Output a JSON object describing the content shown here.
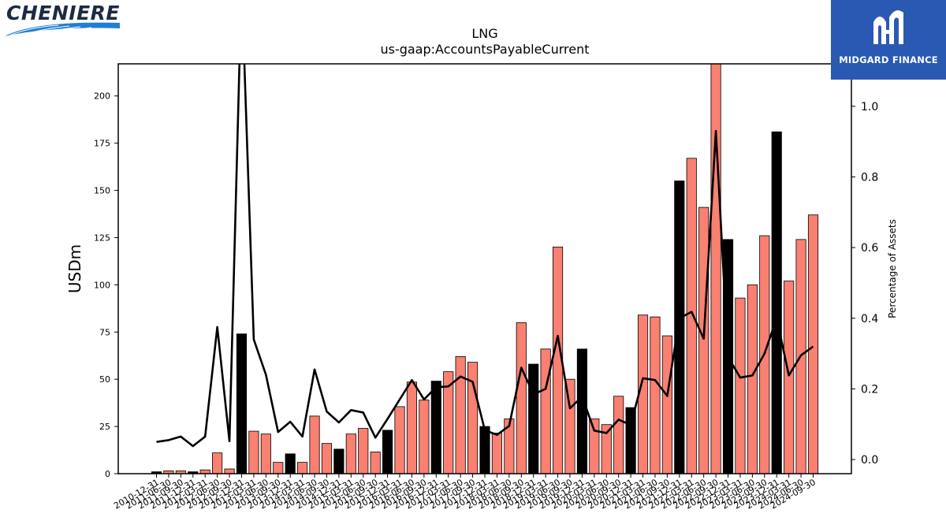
{
  "chart_data": {
    "type": "bar",
    "title": "LNG",
    "subtitle": "us-gaap:AccountsPayableCurrent",
    "ylabel": "USDm",
    "y2label": "Percentage of Assets",
    "ylim": [
      0,
      217
    ],
    "y2lim": [
      -0.04,
      1.12
    ],
    "yticks": [
      0,
      25,
      50,
      75,
      100,
      125,
      150,
      175,
      200
    ],
    "y2ticks": [
      0.0,
      0.2,
      0.4,
      0.6,
      0.8,
      1.0
    ],
    "y2tick_labels": [
      "0.0",
      "0.2",
      "0.4",
      "0.6",
      "0.8",
      "1.0"
    ],
    "categories": [
      "2010-12-31",
      "2011-06-30",
      "2011-09-30",
      "2011-12-31",
      "2012-03-31",
      "2012-06-30",
      "2012-09-30",
      "2012-12-31",
      "2013-03-31",
      "2013-06-30",
      "2013-09-30",
      "2013-12-31",
      "2014-03-31",
      "2014-06-30",
      "2014-09-30",
      "2014-12-31",
      "2015-03-31",
      "2015-06-30",
      "2015-09-30",
      "2015-12-31",
      "2016-03-31",
      "2016-06-30",
      "2016-09-30",
      "2016-12-31",
      "2017-03-31",
      "2017-06-30",
      "2017-09-30",
      "2017-12-31",
      "2018-03-31",
      "2018-06-30",
      "2018-09-30",
      "2018-12-31",
      "2019-03-31",
      "2019-06-30",
      "2019-09-30",
      "2019-12-31",
      "2020-03-31",
      "2020-06-30",
      "2020-09-30",
      "2020-12-31",
      "2021-03-31",
      "2021-06-30",
      "2021-09-30",
      "2021-12-31",
      "2022-03-31",
      "2022-06-30",
      "2022-09-30",
      "2022-12-31",
      "2023-03-31",
      "2023-06-30",
      "2023-09-30",
      "2023-12-31",
      "2024-03-31",
      "2024-06-30",
      "2024-09-30"
    ],
    "series": [
      {
        "axis": "left",
        "kind": "bar",
        "values": [
          1,
          1.5,
          1.5,
          1,
          2,
          11,
          2.5,
          74,
          22.5,
          21,
          6,
          10.5,
          6,
          30.5,
          16,
          13,
          21,
          24,
          11.5,
          23,
          35.5,
          48.5,
          39,
          49,
          54,
          62,
          59,
          25,
          21.5,
          29,
          80,
          58,
          66,
          120,
          50,
          66,
          29,
          26,
          41,
          35,
          84,
          83,
          73,
          155,
          167,
          141,
          220,
          124,
          93,
          100,
          126,
          181,
          102,
          124,
          137
        ],
        "year_end": [
          true,
          false,
          false,
          true,
          false,
          false,
          false,
          true,
          false,
          false,
          false,
          true,
          false,
          false,
          false,
          true,
          false,
          false,
          false,
          true,
          false,
          false,
          false,
          true,
          false,
          false,
          false,
          true,
          false,
          false,
          false,
          true,
          false,
          false,
          false,
          true,
          false,
          false,
          false,
          true,
          false,
          false,
          false,
          true,
          false,
          false,
          false,
          true,
          false,
          false,
          false,
          true,
          false,
          false,
          false
        ],
        "colors": {
          "year_end": "#000000",
          "other": "#fa8072"
        }
      },
      {
        "axis": "right",
        "kind": "line",
        "color": "#000000",
        "values": [
          0.05,
          0.055,
          0.065,
          0.038,
          0.065,
          0.375,
          0.052,
          1.35,
          0.34,
          0.24,
          0.078,
          0.107,
          0.065,
          0.255,
          0.136,
          0.105,
          0.14,
          0.133,
          0.062,
          0.115,
          0.17,
          0.225,
          0.17,
          0.205,
          0.207,
          0.235,
          0.22,
          0.083,
          0.07,
          0.095,
          0.26,
          0.185,
          0.2,
          0.35,
          0.145,
          0.178,
          0.082,
          0.075,
          0.113,
          0.098,
          0.23,
          0.225,
          0.18,
          0.4,
          0.418,
          0.342,
          0.93,
          0.29,
          0.232,
          0.238,
          0.3,
          0.4,
          0.238,
          0.295,
          0.32
        ]
      }
    ],
    "grid": false,
    "legend": "none"
  },
  "logos": {
    "left": {
      "text": "CHENIERE"
    },
    "right": {
      "text": "MIDGARD FINANCE"
    }
  }
}
